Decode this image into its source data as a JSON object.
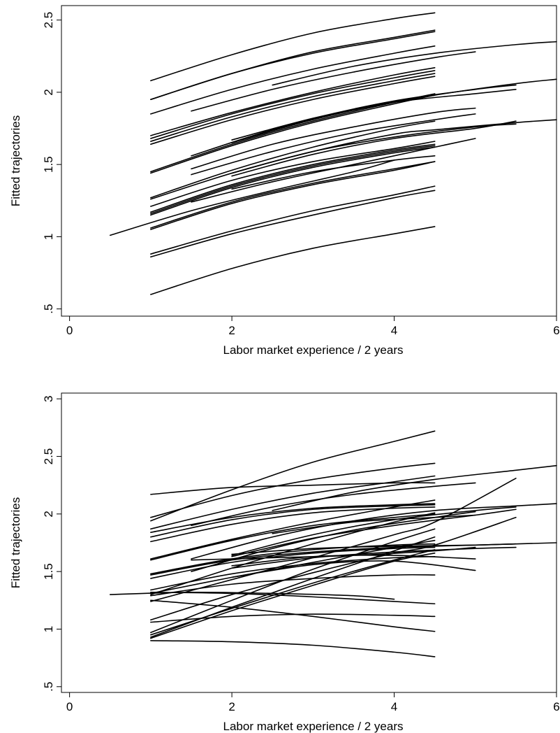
{
  "chart_data": [
    {
      "type": "line",
      "xlabel": "Labor market experience / 2 years",
      "ylabel": "Fitted trajectories",
      "xlim": [
        -0.1,
        6.0
      ],
      "ylim": [
        0.45,
        2.6
      ],
      "xticks": [
        0,
        2,
        4,
        6
      ],
      "yticks": [
        0.5,
        1,
        1.5,
        2,
        2.5
      ],
      "ytick_labels": [
        ".5",
        "1",
        "1.5",
        "2",
        "2.5"
      ],
      "grid": false,
      "series": [
        {
          "x": [
            1,
            2,
            3,
            4,
            4.5
          ],
          "y": [
            2.08,
            2.26,
            2.41,
            2.51,
            2.55
          ]
        },
        {
          "x": [
            1,
            2,
            3,
            4,
            4.5
          ],
          "y": [
            1.95,
            2.13,
            2.28,
            2.38,
            2.43
          ]
        },
        {
          "x": [
            1,
            2,
            3,
            4,
            4.5
          ],
          "y": [
            1.95,
            2.13,
            2.27,
            2.37,
            2.42
          ]
        },
        {
          "x": [
            1,
            2,
            3,
            4,
            4.5
          ],
          "y": [
            1.85,
            2.02,
            2.16,
            2.27,
            2.32
          ]
        },
        {
          "x": [
            2.5,
            3.5,
            4.5,
            5.5,
            6
          ],
          "y": [
            2.05,
            2.18,
            2.27,
            2.33,
            2.35
          ]
        },
        {
          "x": [
            1.5,
            2.5,
            3.5,
            4.5,
            5
          ],
          "y": [
            1.87,
            2.02,
            2.14,
            2.24,
            2.28
          ]
        },
        {
          "x": [
            1,
            2,
            3,
            4,
            4.5
          ],
          "y": [
            1.7,
            1.86,
            2.0,
            2.12,
            2.17
          ]
        },
        {
          "x": [
            1,
            2,
            3,
            4,
            4.5
          ],
          "y": [
            1.68,
            1.85,
            1.99,
            2.1,
            2.15
          ]
        },
        {
          "x": [
            1,
            2,
            3,
            4,
            4.5
          ],
          "y": [
            1.66,
            1.83,
            1.97,
            2.08,
            2.13
          ]
        },
        {
          "x": [
            1,
            2,
            3,
            4,
            4.5
          ],
          "y": [
            1.64,
            1.81,
            1.95,
            2.06,
            2.11
          ]
        },
        {
          "x": [
            1.5,
            2.5,
            3.5,
            4.5,
            5.5,
            6
          ],
          "y": [
            1.56,
            1.74,
            1.88,
            1.98,
            2.06,
            2.09
          ]
        },
        {
          "x": [
            2,
            3,
            4,
            5,
            5.5
          ],
          "y": [
            1.67,
            1.82,
            1.94,
            2.02,
            2.05
          ]
        },
        {
          "x": [
            2,
            3,
            4,
            5,
            5.5
          ],
          "y": [
            1.65,
            1.81,
            1.93,
            1.99,
            2.02
          ]
        },
        {
          "x": [
            1,
            2,
            3,
            4,
            4.5
          ],
          "y": [
            1.45,
            1.64,
            1.8,
            1.93,
            1.99
          ]
        },
        {
          "x": [
            1,
            2,
            3,
            4,
            4.5
          ],
          "y": [
            1.44,
            1.63,
            1.79,
            1.92,
            1.98
          ]
        },
        {
          "x": [
            1.5,
            2.5,
            3.5,
            4.5,
            5
          ],
          "y": [
            1.47,
            1.64,
            1.76,
            1.86,
            1.89
          ]
        },
        {
          "x": [
            1.5,
            2.5,
            3.5,
            4.5,
            5
          ],
          "y": [
            1.43,
            1.59,
            1.72,
            1.81,
            1.85
          ]
        },
        {
          "x": [
            1,
            2,
            3,
            4,
            4.5
          ],
          "y": [
            1.27,
            1.46,
            1.62,
            1.75,
            1.8
          ]
        },
        {
          "x": [
            1,
            2,
            3,
            4,
            4.5,
            5.5,
            6
          ],
          "y": [
            1.26,
            1.44,
            1.59,
            1.71,
            1.74,
            1.79,
            1.81
          ]
        },
        {
          "x": [
            2,
            3,
            4,
            5,
            5.5
          ],
          "y": [
            1.44,
            1.59,
            1.69,
            1.76,
            1.78
          ]
        },
        {
          "x": [
            2,
            3,
            4,
            5,
            5.5
          ],
          "y": [
            1.42,
            1.57,
            1.68,
            1.75,
            1.8
          ]
        },
        {
          "x": [
            1,
            2,
            3,
            4,
            4.5
          ],
          "y": [
            1.21,
            1.39,
            1.52,
            1.61,
            1.66
          ]
        },
        {
          "x": [
            1,
            2,
            3,
            4,
            4.5
          ],
          "y": [
            1.17,
            1.36,
            1.5,
            1.6,
            1.64
          ]
        },
        {
          "x": [
            1,
            2,
            3,
            4,
            4.5
          ],
          "y": [
            1.16,
            1.35,
            1.49,
            1.59,
            1.63
          ]
        },
        {
          "x": [
            1,
            2,
            3,
            4,
            4.5
          ],
          "y": [
            1.15,
            1.34,
            1.48,
            1.58,
            1.62
          ]
        },
        {
          "x": [
            1.5,
            2.5,
            3.5,
            4.5,
            5
          ],
          "y": [
            1.24,
            1.38,
            1.5,
            1.62,
            1.68
          ]
        },
        {
          "x": [
            2,
            3,
            4,
            4.5
          ],
          "y": [
            1.33,
            1.45,
            1.53,
            1.56
          ]
        },
        {
          "x": [
            1,
            2,
            3,
            4,
            4.5
          ],
          "y": [
            1.06,
            1.24,
            1.37,
            1.47,
            1.52
          ]
        },
        {
          "x": [
            1,
            2,
            3,
            4,
            4.5
          ],
          "y": [
            1.05,
            1.23,
            1.36,
            1.46,
            1.52
          ]
        },
        {
          "x": [
            0.5,
            1.5,
            2.5,
            3.5,
            4
          ],
          "y": [
            1.01,
            1.18,
            1.32,
            1.45,
            1.53
          ]
        },
        {
          "x": [
            1,
            2,
            3,
            4,
            4.5
          ],
          "y": [
            0.88,
            1.04,
            1.18,
            1.29,
            1.35
          ]
        },
        {
          "x": [
            1,
            2,
            3,
            4,
            4.5
          ],
          "y": [
            0.86,
            1.02,
            1.15,
            1.27,
            1.32
          ]
        },
        {
          "x": [
            1,
            2,
            3,
            4,
            4.5
          ],
          "y": [
            0.6,
            0.78,
            0.92,
            1.02,
            1.07
          ]
        }
      ]
    },
    {
      "type": "line",
      "xlabel": "Labor market experience / 2 years",
      "ylabel": "Fitted trajectories",
      "xlim": [
        -0.1,
        6.0
      ],
      "ylim": [
        0.45,
        3.05
      ],
      "xticks": [
        0,
        2,
        4,
        6
      ],
      "yticks": [
        0.5,
        1,
        1.5,
        2,
        2.5,
        3
      ],
      "ytick_labels": [
        ".5",
        "1",
        "1.5",
        "2",
        "2.5",
        "3"
      ],
      "grid": false,
      "series": [
        {
          "x": [
            1,
            2,
            3,
            4,
            4.5
          ],
          "y": [
            1.94,
            2.21,
            2.45,
            2.63,
            2.72
          ]
        },
        {
          "x": [
            1,
            2,
            3,
            4,
            4.5
          ],
          "y": [
            1.97,
            2.16,
            2.3,
            2.4,
            2.44
          ]
        },
        {
          "x": [
            1,
            2,
            3,
            4,
            4.5
          ],
          "y": [
            2.17,
            2.23,
            2.25,
            2.27,
            2.27
          ]
        },
        {
          "x": [
            1,
            2,
            3,
            4,
            4.5
          ],
          "y": [
            1.87,
            2.04,
            2.18,
            2.28,
            2.33
          ]
        },
        {
          "x": [
            2.5,
            3.5,
            4.5,
            5.5,
            6
          ],
          "y": [
            2.03,
            2.19,
            2.3,
            2.38,
            2.42
          ]
        },
        {
          "x": [
            1.5,
            2.5,
            3.5,
            4.5,
            5
          ],
          "y": [
            1.9,
            2.06,
            2.17,
            2.24,
            2.27
          ]
        },
        {
          "x": [
            1,
            2,
            3,
            4,
            4.5
          ],
          "y": [
            1.84,
            1.97,
            2.05,
            2.08,
            2.09
          ]
        },
        {
          "x": [
            1,
            2,
            3,
            4,
            4.5
          ],
          "y": [
            1.8,
            1.95,
            2.04,
            2.07,
            2.08
          ]
        },
        {
          "x": [
            1,
            2,
            3,
            4,
            4.5
          ],
          "y": [
            1.76,
            1.91,
            2.01,
            2.05,
            2.06
          ]
        },
        {
          "x": [
            1.5,
            2.5,
            3.5,
            4.5,
            5.5,
            6
          ],
          "y": [
            1.61,
            1.8,
            1.94,
            2.03,
            2.07,
            2.09
          ]
        },
        {
          "x": [
            2,
            3,
            4,
            5,
            5.5
          ],
          "y": [
            1.64,
            1.82,
            1.95,
            2.03,
            2.06
          ]
        },
        {
          "x": [
            2,
            3,
            4,
            5,
            5.5
          ],
          "y": [
            1.63,
            1.79,
            1.9,
            1.99,
            2.04
          ]
        },
        {
          "x": [
            1,
            2,
            3,
            4,
            4.5
          ],
          "y": [
            1.61,
            1.78,
            1.93,
            2.06,
            2.12
          ]
        },
        {
          "x": [
            1,
            2,
            3,
            4,
            4.5
          ],
          "y": [
            1.6,
            1.77,
            1.9,
            1.97,
            2.0
          ]
        },
        {
          "x": [
            1.5,
            2.5,
            3.5,
            4.5,
            5
          ],
          "y": [
            1.5,
            1.7,
            1.86,
            1.97,
            2.02
          ]
        },
        {
          "x": [
            2.5,
            3.5,
            4.5,
            5
          ],
          "y": [
            1.83,
            1.93,
            1.97,
            1.99
          ]
        },
        {
          "x": [
            1,
            2,
            3,
            4,
            4.5
          ],
          "y": [
            1.48,
            1.61,
            1.69,
            1.73,
            1.74
          ]
        },
        {
          "x": [
            1,
            2,
            3,
            4,
            4.5,
            5.5,
            6
          ],
          "y": [
            1.47,
            1.6,
            1.67,
            1.71,
            1.72,
            1.74,
            1.75
          ]
        },
        {
          "x": [
            1.5,
            2.5,
            3.5,
            4.5,
            5
          ],
          "y": [
            1.6,
            1.62,
            1.64,
            1.68,
            1.71
          ]
        },
        {
          "x": [
            2,
            3,
            4,
            5,
            5.5
          ],
          "y": [
            1.65,
            1.7,
            1.72,
            1.73,
            1.74
          ]
        },
        {
          "x": [
            2,
            3,
            4,
            5,
            5.5
          ],
          "y": [
            1.53,
            1.62,
            1.67,
            1.7,
            1.71
          ]
        },
        {
          "x": [
            1,
            2,
            3,
            4,
            4.5
          ],
          "y": [
            1.44,
            1.58,
            1.66,
            1.7,
            1.71
          ]
        },
        {
          "x": [
            1,
            2,
            3,
            4,
            4.5
          ],
          "y": [
            1.3,
            1.53,
            1.74,
            1.93,
            2.01
          ]
        },
        {
          "x": [
            1,
            2,
            3,
            4,
            4.5
          ],
          "y": [
            1.31,
            1.45,
            1.58,
            1.71,
            1.77
          ]
        },
        {
          "x": [
            1,
            2,
            3,
            4,
            4.5
          ],
          "y": [
            1.34,
            1.48,
            1.57,
            1.62,
            1.63
          ]
        },
        {
          "x": [
            2,
            3,
            4,
            5
          ],
          "y": [
            1.55,
            1.63,
            1.64,
            1.61
          ]
        },
        {
          "x": [
            1,
            2,
            3,
            4,
            4.5
          ],
          "y": [
            1.29,
            1.39,
            1.44,
            1.47,
            1.47
          ]
        },
        {
          "x": [
            2,
            3,
            4,
            5
          ],
          "y": [
            1.45,
            1.56,
            1.59,
            1.51
          ]
        },
        {
          "x": [
            1,
            2,
            3,
            4,
            4.5,
            5.5
          ],
          "y": [
            1.24,
            1.43,
            1.62,
            1.82,
            1.93,
            2.31
          ]
        },
        {
          "x": [
            1,
            2,
            3,
            4,
            4.5,
            5.5
          ],
          "y": [
            1.08,
            1.3,
            1.49,
            1.66,
            1.73,
            1.97
          ]
        },
        {
          "x": [
            1,
            2,
            3,
            4,
            4.5
          ],
          "y": [
            0.97,
            1.25,
            1.52,
            1.76,
            1.87
          ]
        },
        {
          "x": [
            1,
            2,
            3,
            4,
            4.5
          ],
          "y": [
            0.95,
            1.18,
            1.4,
            1.6,
            1.69
          ]
        },
        {
          "x": [
            1,
            2,
            3,
            4,
            4.5
          ],
          "y": [
            0.93,
            1.19,
            1.44,
            1.68,
            1.8
          ]
        },
        {
          "x": [
            1,
            2,
            3,
            4,
            4.5
          ],
          "y": [
            0.92,
            1.16,
            1.38,
            1.59,
            1.66
          ]
        },
        {
          "x": [
            0.5,
            1.5,
            2.5,
            3.5,
            4
          ],
          "y": [
            1.3,
            1.32,
            1.31,
            1.29,
            1.26
          ]
        },
        {
          "x": [
            1,
            2,
            3,
            4,
            4.5
          ],
          "y": [
            1.32,
            1.31,
            1.28,
            1.24,
            1.22
          ]
        },
        {
          "x": [
            1,
            2,
            3,
            4,
            4.5
          ],
          "y": [
            1.06,
            1.11,
            1.13,
            1.12,
            1.11
          ]
        },
        {
          "x": [
            1,
            2,
            3,
            4,
            4.5
          ],
          "y": [
            1.25,
            1.19,
            1.11,
            1.02,
            0.98
          ]
        },
        {
          "x": [
            1,
            2,
            3,
            4,
            4.5
          ],
          "y": [
            0.9,
            0.89,
            0.86,
            0.8,
            0.76
          ]
        }
      ]
    }
  ]
}
